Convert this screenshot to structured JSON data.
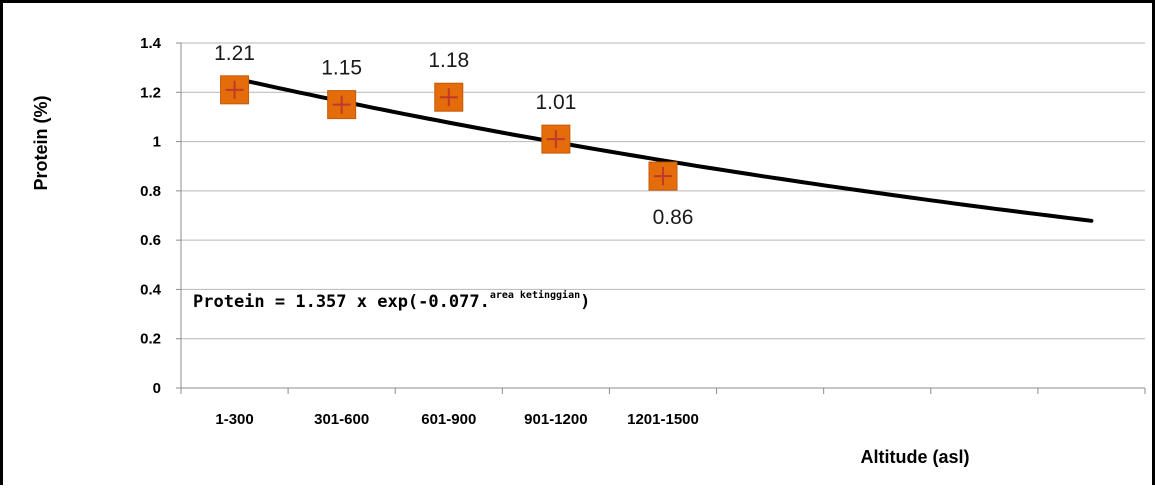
{
  "chart_data": {
    "type": "scatter",
    "categories": [
      "1-300",
      "301-600",
      "601-900",
      "901-1200",
      "1201-1500",
      "",
      "",
      "",
      ""
    ],
    "series": [
      {
        "values": [
          1.21,
          1.15,
          1.18,
          1.01,
          0.86
        ]
      }
    ],
    "trendline": {
      "type": "exponential",
      "a": 1.357,
      "b": -0.077
    },
    "equation": {
      "main": "Protein = 1.357 x exp(-0.077.",
      "superscript": "area ketinggian",
      "close": ")"
    },
    "xlabel": "Altitude (asl)",
    "ylabel": "Protein (%)",
    "ylim": [
      0,
      1.4
    ],
    "yticks": [
      "0",
      "0.2",
      "0.4",
      "0.6",
      "0.8",
      "1",
      "1.2",
      "1.4"
    ],
    "grid": true,
    "legend": "none",
    "colors": {
      "marker_fill": "#E46C0A",
      "marker_cross": "#C0392B",
      "trendline": "#000000",
      "gridline": "#b7b7b7"
    }
  }
}
